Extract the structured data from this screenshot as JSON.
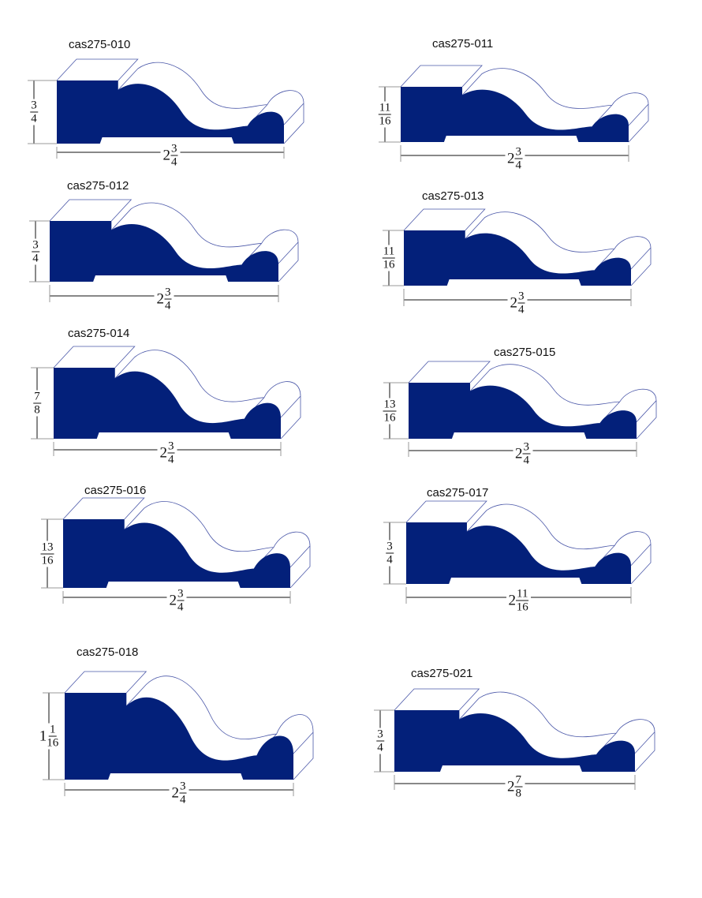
{
  "colors": {
    "profile_fill": "#03207a",
    "outline": "#4a57a8",
    "dimension": "#111111"
  },
  "profiles": [
    {
      "label": "cas275-010",
      "height": {
        "whole": "",
        "num": "3",
        "den": "4"
      },
      "width": {
        "whole": "2",
        "num": "3",
        "den": "4"
      }
    },
    {
      "label": "cas275-011",
      "height": {
        "whole": "",
        "num": "11",
        "den": "16"
      },
      "width": {
        "whole": "2",
        "num": "3",
        "den": "4"
      }
    },
    {
      "label": "cas275-012",
      "height": {
        "whole": "",
        "num": "3",
        "den": "4"
      },
      "width": {
        "whole": "2",
        "num": "3",
        "den": "4"
      }
    },
    {
      "label": "cas275-013",
      "height": {
        "whole": "",
        "num": "11",
        "den": "16"
      },
      "width": {
        "whole": "2",
        "num": "3",
        "den": "4"
      }
    },
    {
      "label": "cas275-014",
      "height": {
        "whole": "",
        "num": "7",
        "den": "8"
      },
      "width": {
        "whole": "2",
        "num": "3",
        "den": "4"
      }
    },
    {
      "label": "cas275-015",
      "height": {
        "whole": "",
        "num": "13",
        "den": "16"
      },
      "width": {
        "whole": "2",
        "num": "3",
        "den": "4"
      }
    },
    {
      "label": "cas275-016",
      "height": {
        "whole": "",
        "num": "13",
        "den": "16"
      },
      "width": {
        "whole": "2",
        "num": "3",
        "den": "4"
      }
    },
    {
      "label": "cas275-017",
      "height": {
        "whole": "",
        "num": "3",
        "den": "4"
      },
      "width": {
        "whole": "2",
        "num": "11",
        "den": "16"
      }
    },
    {
      "label": "cas275-018",
      "height": {
        "whole": "1",
        "num": "1",
        "den": "16"
      },
      "width": {
        "whole": "2",
        "num": "3",
        "den": "4"
      }
    },
    {
      "label": "cas275-021",
      "height": {
        "whole": "",
        "num": "3",
        "den": "4"
      },
      "width": {
        "whole": "2",
        "num": "7",
        "den": "8"
      }
    }
  ]
}
